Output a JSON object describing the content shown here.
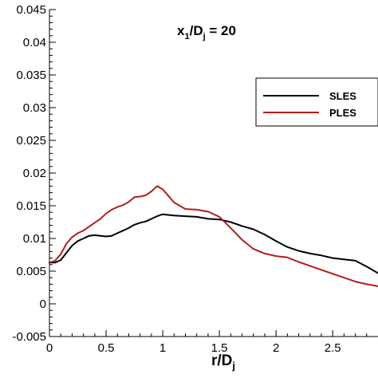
{
  "chart_data": {
    "type": "line",
    "annotation": {
      "main1": "x",
      "sub1": "1",
      "main2": "/D",
      "sub2": "j",
      "main3": " = 20"
    },
    "xlabel": {
      "main": "r/D",
      "sub": "j"
    },
    "ylabel": "",
    "xlim": [
      0,
      2.9
    ],
    "ylim": [
      -0.005,
      0.045
    ],
    "x_ticks": [
      0,
      0.5,
      1,
      1.5,
      2,
      2.5
    ],
    "x_tick_labels": [
      "0",
      "0.5",
      "1",
      "1.5",
      "2",
      "2.5"
    ],
    "y_ticks": [
      -0.005,
      0,
      0.005,
      0.01,
      0.015,
      0.02,
      0.025,
      0.03,
      0.035,
      0.04,
      0.045
    ],
    "y_tick_labels": [
      "-0.005",
      "0",
      "0.005",
      "0.01",
      "0.015",
      "0.02",
      "0.025",
      "0.03",
      "0.035",
      "0.04",
      "0.045"
    ],
    "grid": false,
    "legend_position": "upper-right",
    "series": [
      {
        "name": "SLES",
        "color": "#000000",
        "x": [
          0.0,
          0.05,
          0.1,
          0.15,
          0.2,
          0.25,
          0.3,
          0.35,
          0.4,
          0.45,
          0.5,
          0.55,
          0.6,
          0.65,
          0.7,
          0.75,
          0.8,
          0.85,
          0.9,
          0.95,
          1.0,
          1.05,
          1.1,
          1.2,
          1.3,
          1.4,
          1.5,
          1.6,
          1.7,
          1.8,
          1.9,
          2.0,
          2.1,
          2.2,
          2.3,
          2.4,
          2.5,
          2.6,
          2.7,
          2.8,
          2.9
        ],
        "y": [
          0.0063,
          0.0063,
          0.0067,
          0.0078,
          0.0089,
          0.0096,
          0.01,
          0.0104,
          0.0105,
          0.0104,
          0.0103,
          0.0104,
          0.0108,
          0.0112,
          0.0116,
          0.0121,
          0.0124,
          0.0126,
          0.013,
          0.0134,
          0.0137,
          0.0136,
          0.0135,
          0.0134,
          0.0133,
          0.013,
          0.0129,
          0.0125,
          0.0119,
          0.0114,
          0.0106,
          0.0096,
          0.0087,
          0.0081,
          0.0077,
          0.0074,
          0.007,
          0.0068,
          0.0066,
          0.0057,
          0.0047
        ]
      },
      {
        "name": "PLES",
        "color": "#b01e1e",
        "x": [
          0.0,
          0.05,
          0.1,
          0.15,
          0.2,
          0.25,
          0.3,
          0.35,
          0.4,
          0.45,
          0.5,
          0.55,
          0.6,
          0.65,
          0.7,
          0.75,
          0.8,
          0.85,
          0.9,
          0.95,
          1.0,
          1.05,
          1.1,
          1.2,
          1.3,
          1.4,
          1.5,
          1.6,
          1.7,
          1.8,
          1.9,
          2.0,
          2.1,
          2.2,
          2.3,
          2.4,
          2.5,
          2.6,
          2.7,
          2.8,
          2.9
        ],
        "y": [
          0.0063,
          0.0066,
          0.0076,
          0.0092,
          0.0102,
          0.0108,
          0.0112,
          0.0118,
          0.0124,
          0.013,
          0.0138,
          0.0144,
          0.0148,
          0.0151,
          0.0156,
          0.0163,
          0.0164,
          0.0166,
          0.0172,
          0.018,
          0.0175,
          0.0165,
          0.0155,
          0.0145,
          0.0144,
          0.0141,
          0.0133,
          0.0116,
          0.0098,
          0.0084,
          0.0077,
          0.0073,
          0.0071,
          0.0064,
          0.0058,
          0.0052,
          0.0046,
          0.004,
          0.0034,
          0.003,
          0.0027
        ]
      }
    ]
  }
}
